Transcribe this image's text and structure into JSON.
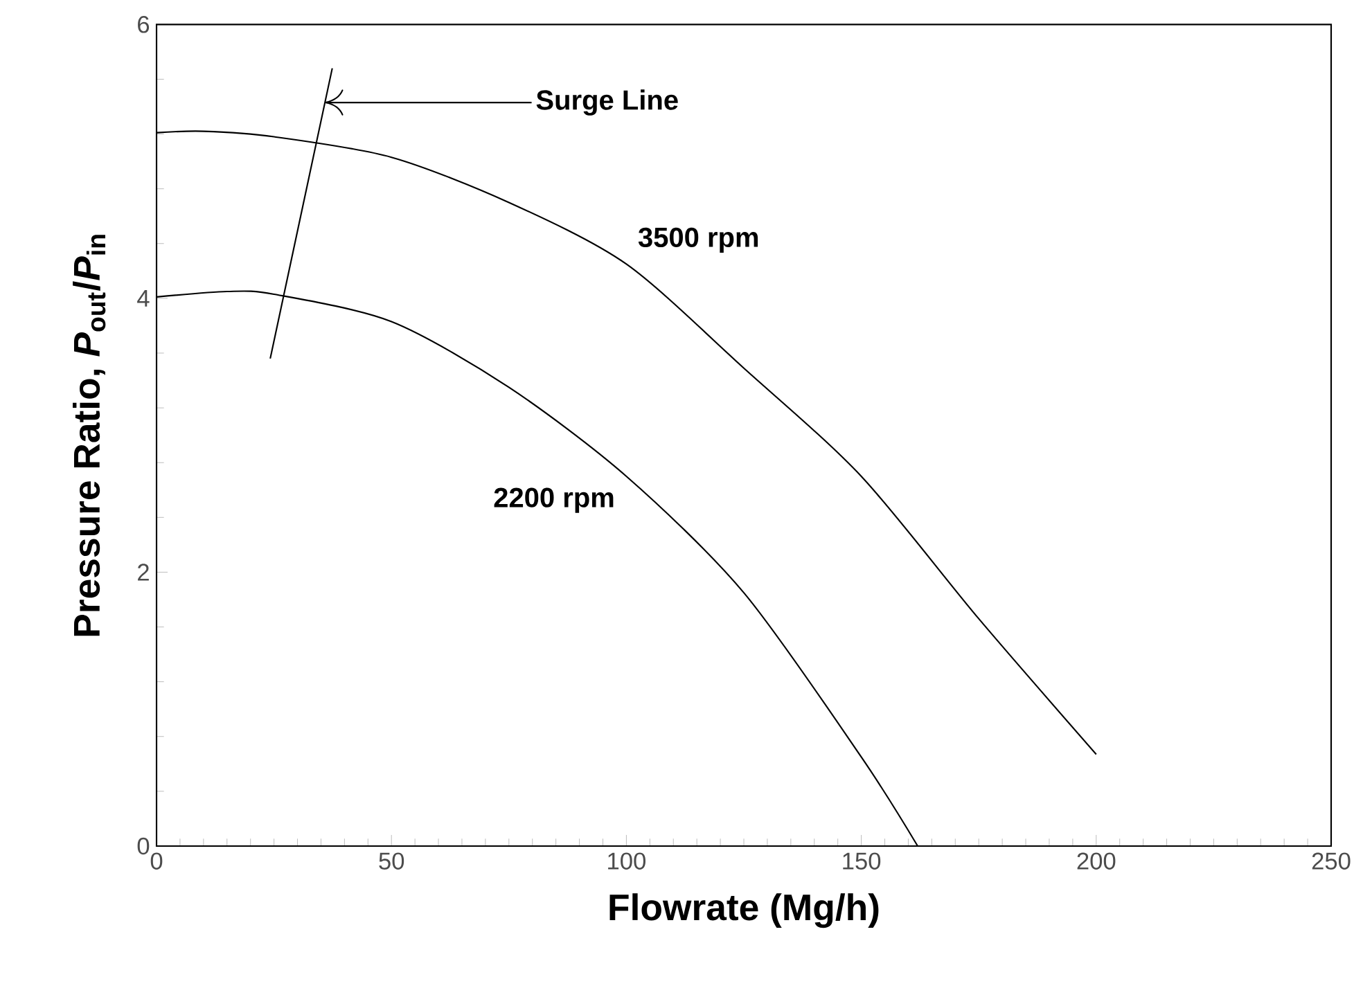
{
  "chart_data": {
    "type": "line",
    "xlabel": "Flowrate (Mg/h)",
    "ylabel": "Pressure Ratio, *P*$_{out}$/*P*$_{in}$",
    "xlim": [
      0,
      250
    ],
    "ylim": [
      0,
      6
    ],
    "xticks": [
      0,
      {
        "value": 5,
        "label": null
      },
      {
        "value": 10,
        "label": null
      },
      {
        "value": 15,
        "label": null
      },
      {
        "value": 20,
        "label": null
      },
      {
        "value": 25,
        "label": null
      },
      {
        "value": 30,
        "label": null
      },
      {
        "value": 35,
        "label": null
      },
      {
        "value": 40,
        "label": null
      },
      {
        "value": 45,
        "label": null
      },
      50,
      {
        "value": 55,
        "label": null
      },
      {
        "value": 60,
        "label": null
      },
      {
        "value": 65,
        "label": null
      },
      {
        "value": 70,
        "label": null
      },
      {
        "value": 75,
        "label": null
      },
      {
        "value": 80,
        "label": null
      },
      {
        "value": 85,
        "label": null
      },
      {
        "value": 90,
        "label": null
      },
      {
        "value": 95,
        "label": null
      },
      100,
      {
        "value": 105,
        "label": null
      },
      {
        "value": 110,
        "label": null
      },
      {
        "value": 115,
        "label": null
      },
      {
        "value": 120,
        "label": null
      },
      {
        "value": 125,
        "label": null
      },
      {
        "value": 130,
        "label": null
      },
      {
        "value": 135,
        "label": null
      },
      {
        "value": 140,
        "label": null
      },
      {
        "value": 145,
        "label": null
      },
      150,
      {
        "value": 155,
        "label": null
      },
      {
        "value": 160,
        "label": null
      },
      {
        "value": 165,
        "label": null
      },
      {
        "value": 170,
        "label": null
      },
      {
        "value": 175,
        "label": null
      },
      {
        "value": 180,
        "label": null
      },
      {
        "value": 185,
        "label": null
      },
      {
        "value": 190,
        "label": null
      },
      {
        "value": 195,
        "label": null
      },
      200,
      {
        "value": 205,
        "label": null
      },
      {
        "value": 210,
        "label": null
      },
      {
        "value": 215,
        "label": null
      },
      {
        "value": 220,
        "label": null
      },
      {
        "value": 225,
        "label": null
      },
      {
        "value": 230,
        "label": null
      },
      {
        "value": 235,
        "label": null
      },
      {
        "value": 240,
        "label": null
      },
      {
        "value": 245,
        "label": null
      },
      250
    ],
    "yticks": [
      0,
      {
        "value": 0.4,
        "label": null
      },
      {
        "value": 0.8,
        "label": null
      },
      {
        "value": 1.2,
        "label": null
      },
      {
        "value": 1.6,
        "label": null
      },
      2,
      {
        "value": 2.4,
        "label": null
      },
      {
        "value": 2.8,
        "label": null
      },
      {
        "value": 3.2,
        "label": null
      },
      {
        "value": 3.6,
        "label": null
      },
      4,
      {
        "value": 4.4,
        "label": null
      },
      {
        "value": 4.8,
        "label": null
      },
      {
        "value": 5.2,
        "label": null
      },
      {
        "value": 5.6,
        "label": null
      },
      6
    ],
    "grid": false,
    "legend": false,
    "marker": "none",
    "line_style": "solid",
    "series": [
      {
        "name": "3500 rpm",
        "color": "#000000",
        "x": [
          0,
          10,
          25,
          50,
          75,
          100,
          125,
          150,
          175,
          200
        ],
        "values": [
          5.21,
          5.22,
          5.18,
          5.03,
          4.7,
          4.25,
          3.49,
          2.7,
          1.66,
          0.67
        ]
      },
      {
        "name": "2200 rpm",
        "color": "#000000",
        "x": [
          0,
          15,
          25,
          50,
          75,
          100,
          125,
          150,
          162
        ],
        "values": [
          4.01,
          4.05,
          4.03,
          3.83,
          3.35,
          2.7,
          1.85,
          0.65,
          0
        ]
      },
      {
        "color": "#000000",
        "x": [
          24.2,
          37.4
        ],
        "values": [
          3.56,
          5.68
        ]
      }
    ],
    "annotations": [
      {
        "text": "Surge Line",
        "x": 35.8,
        "y": 5.43
      }
    ]
  }
}
